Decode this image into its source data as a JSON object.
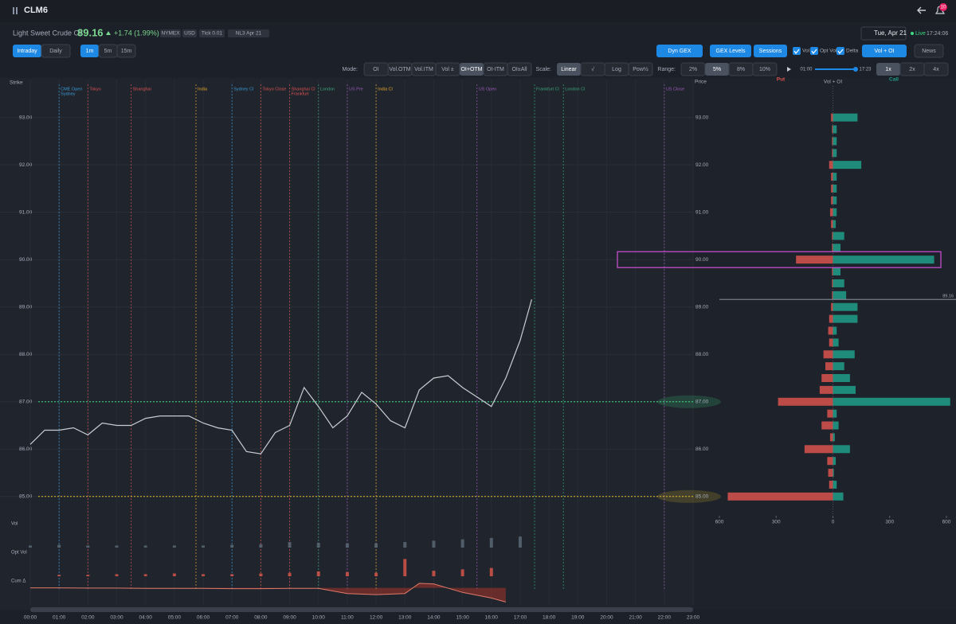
{
  "header": {
    "symbol": "CLM6",
    "badge": "10"
  },
  "quote": {
    "name": "Light Sweet Crude Oil",
    "price": "89.16",
    "change": "+1.74 (1.99%)",
    "tags": [
      "NYMEX",
      "USD",
      "Tick 0.01",
      "NL3 Apr 21"
    ],
    "date": "Tue, Apr 21",
    "status": "Live",
    "time": "17:24:06"
  },
  "toolbar": {
    "views": [
      "Intraday",
      "Daily"
    ],
    "intervals": [
      "1m",
      "5m",
      "15m"
    ],
    "overlays": [
      "Dyn GEX",
      "GEX Levels",
      "Sessions"
    ],
    "toggles": [
      "Vol",
      "Opt Vol",
      "Delta"
    ],
    "profile": "Vol + OI",
    "news": "News"
  },
  "controls": {
    "mode_label": "Mode:",
    "modes": [
      "OI",
      "Vol.OTM",
      "Vol.ITM",
      "Vol ±",
      "OI+OTM",
      "OI-ITM",
      "OI±All"
    ],
    "scale_label": "Scale:",
    "scales": [
      "Linear",
      "√",
      "Log",
      "Pow½"
    ],
    "range_label": "Range:",
    "ranges": [
      "2%",
      "5%",
      "8%",
      "10%"
    ],
    "start": "01:00",
    "end": "17:23",
    "speeds": [
      "1x",
      "2x",
      "4x"
    ]
  },
  "chart_data": [
    {
      "type": "line",
      "y_label": "Strike",
      "color": "#c8ccd2",
      "x": [
        0,
        0.5,
        1,
        1.5,
        2,
        2.5,
        3,
        3.5,
        4,
        4.5,
        5,
        5.5,
        6,
        6.5,
        7,
        7.5,
        8,
        8.5,
        9,
        9.5,
        10,
        10.5,
        11,
        11.5,
        12,
        12.5,
        13,
        13.5,
        14,
        14.5,
        15,
        15.5,
        16,
        16.5,
        17,
        17.4
      ],
      "values": [
        86.1,
        86.4,
        86.4,
        86.45,
        86.3,
        86.55,
        86.5,
        86.5,
        86.65,
        86.7,
        86.7,
        86.7,
        86.55,
        86.45,
        86.4,
        85.95,
        85.9,
        86.35,
        86.5,
        87.3,
        86.9,
        86.45,
        86.7,
        87.2,
        86.95,
        86.6,
        86.45,
        87.25,
        87.5,
        87.55,
        87.3,
        87.1,
        86.9,
        87.5,
        88.3,
        89.16
      ],
      "xlim": [
        0,
        23
      ],
      "xticks": [
        {
          "value": 0,
          "label": "00:00"
        },
        {
          "value": 1,
          "label": "01:00"
        },
        {
          "value": 2,
          "label": "02:00"
        },
        {
          "value": 3,
          "label": "03:00"
        },
        {
          "value": 4,
          "label": "04:00"
        },
        {
          "value": 5,
          "label": "05:00"
        },
        {
          "value": 6,
          "label": "06:00"
        },
        {
          "value": 7,
          "label": "07:00"
        },
        {
          "value": 8,
          "label": "08:00"
        },
        {
          "value": 9,
          "label": "09:00"
        },
        {
          "value": 10,
          "label": "10:00"
        },
        {
          "value": 11,
          "label": "11:00"
        },
        {
          "value": 12,
          "label": "12:00"
        },
        {
          "value": 13,
          "label": "13:00"
        },
        {
          "value": 14,
          "label": "14:00"
        },
        {
          "value": 15,
          "label": "15:00"
        },
        {
          "value": 16,
          "label": "16:00"
        },
        {
          "value": 17,
          "label": "17:00"
        },
        {
          "value": 18,
          "label": "18:00"
        },
        {
          "value": 19,
          "label": "19:00"
        },
        {
          "value": 20,
          "label": "20:00"
        },
        {
          "value": 21,
          "label": "21:00"
        },
        {
          "value": 22,
          "label": "22:00"
        },
        {
          "value": 23,
          "label": "23:00"
        }
      ],
      "ylim": [
        84.56,
        93.8
      ],
      "yticks": [
        {
          "value": 85,
          "label": "85.00"
        },
        {
          "value": 86,
          "label": "86.00"
        },
        {
          "value": 87,
          "label": "87.00"
        },
        {
          "value": 88,
          "label": "88.00"
        },
        {
          "value": 89,
          "label": "89.00"
        },
        {
          "value": 90,
          "label": "90.00"
        },
        {
          "value": 91,
          "label": "91.00"
        },
        {
          "value": 92,
          "label": "92.00"
        },
        {
          "value": 93,
          "label": "93.00"
        }
      ],
      "sessions": [
        {
          "label": "CME Open",
          "sub": "Sydney",
          "x": 1,
          "color": "#3a9bd5"
        },
        {
          "label": "Tokyo",
          "x": 2,
          "color": "#d9534f"
        },
        {
          "label": "Shanghai",
          "x": 3.5,
          "color": "#d9534f"
        },
        {
          "label": "India",
          "x": 5.75,
          "color": "#e6a829"
        },
        {
          "label": "Sydney Cl",
          "x": 7,
          "color": "#3a9bd5"
        },
        {
          "label": "Tokyo Close",
          "x": 8,
          "color": "#d9534f"
        },
        {
          "label": "Shanghai Cl",
          "sub": "Frankfurt",
          "x": 9,
          "color": "#d9534f"
        },
        {
          "label": "London",
          "x": 10,
          "color": "#3aa57a"
        },
        {
          "label": "US Pre",
          "x": 11,
          "color": "#9b59b6"
        },
        {
          "label": "India Cl",
          "x": 12,
          "color": "#e6a829"
        },
        {
          "label": "US Open",
          "x": 15.5,
          "color": "#9b59b6"
        },
        {
          "label": "Frankfurt Cl",
          "x": 17.5,
          "color": "#3aa57a"
        },
        {
          "label": "London Cl",
          "x": 18.5,
          "color": "#3aa57a"
        },
        {
          "label": "US Close",
          "x": 22,
          "color": "#9b59b6"
        }
      ],
      "levels": [
        {
          "value": 87,
          "color": "#3ddc84"
        },
        {
          "value": 85,
          "color": "#e6c229"
        }
      ]
    },
    {
      "type": "bar",
      "title": "Vol",
      "color": "#5d6b78",
      "x": [
        0,
        1,
        2,
        3,
        4,
        5,
        6,
        7,
        8,
        9,
        10,
        11,
        12,
        13,
        14,
        15,
        16,
        17
      ],
      "values": [
        3,
        4,
        3,
        3,
        3,
        3,
        3,
        4,
        5,
        8,
        7,
        6,
        6,
        8,
        10,
        12,
        14,
        16
      ],
      "ylim": [
        0,
        30
      ]
    },
    {
      "type": "bar",
      "title": "Opt Vol",
      "color": "#e0584a",
      "x": [
        1,
        2,
        3,
        4,
        5,
        6,
        7,
        8,
        9,
        10,
        11,
        12,
        13,
        14,
        15,
        16
      ],
      "values": [
        2,
        2,
        3,
        3,
        4,
        3,
        3,
        4,
        5,
        7,
        6,
        5,
        25,
        8,
        10,
        12
      ],
      "ylim": [
        0,
        30
      ]
    },
    {
      "type": "area",
      "title": "Cum Δ",
      "color": "#c0392b",
      "x": [
        0,
        1,
        2,
        3,
        4,
        5,
        6,
        7,
        8,
        9,
        10,
        11,
        12,
        13,
        13.5,
        14,
        15,
        16,
        16.5
      ],
      "values": [
        0,
        0,
        -0.5,
        -0.5,
        -1,
        -1,
        -1,
        -1.5,
        -1.5,
        -1,
        -1,
        -10,
        -12,
        -10,
        8,
        7,
        -8,
        -18,
        -25
      ],
      "ylim": [
        -30,
        12
      ]
    },
    {
      "type": "hbar",
      "title": "Vol + OI",
      "y_label": "Price",
      "y": [
        85,
        85.25,
        85.5,
        85.75,
        86,
        86.25,
        86.5,
        86.75,
        87,
        87.25,
        87.5,
        87.75,
        88,
        88.25,
        88.5,
        88.75,
        89,
        89.25,
        89.5,
        89.75,
        90,
        90.25,
        90.5,
        90.75,
        91,
        91.25,
        91.5,
        91.75,
        92,
        92.25,
        92.5,
        92.75,
        93
      ],
      "series": [
        {
          "name": "Put",
          "color": "#d9534f",
          "values": [
            -556,
            -20,
            -25,
            -30,
            -150,
            -15,
            -60,
            -30,
            -290,
            -70,
            -60,
            -40,
            -50,
            -20,
            -25,
            -20,
            -10,
            -5,
            -5,
            -5,
            -195,
            -5,
            -5,
            -10,
            -15,
            -10,
            -10,
            -10,
            -20,
            -5,
            -5,
            -5,
            -10
          ]
        },
        {
          "name": "Call",
          "color": "#1f9e89",
          "values": [
            55,
            20,
            5,
            15,
            90,
            10,
            30,
            20,
            620,
            120,
            90,
            60,
            115,
            30,
            20,
            130,
            130,
            70,
            60,
            40,
            535,
            40,
            60,
            15,
            20,
            20,
            20,
            20,
            150,
            20,
            20,
            20,
            130
          ]
        }
      ],
      "xlim": [
        -600,
        600
      ],
      "xticks": [
        {
          "value": -600,
          "label": "600"
        },
        {
          "value": -300,
          "label": "300"
        },
        0,
        300,
        600
      ],
      "ylim": [
        84.56,
        93.8
      ],
      "yticks": [
        {
          "value": 85,
          "label": "85.00"
        },
        {
          "value": 86,
          "label": "86.00"
        },
        {
          "value": 87,
          "label": "87.00"
        },
        {
          "value": 88,
          "label": "88.00"
        },
        {
          "value": 89,
          "label": "89.00"
        },
        {
          "value": 90,
          "label": "90.00"
        },
        {
          "value": 91,
          "label": "91.00"
        },
        {
          "value": 92,
          "label": "92.00"
        },
        {
          "value": 93,
          "label": "93.00"
        }
      ],
      "highlight": 90,
      "last_price": {
        "value": 89.16,
        "label": "89.16"
      }
    }
  ]
}
